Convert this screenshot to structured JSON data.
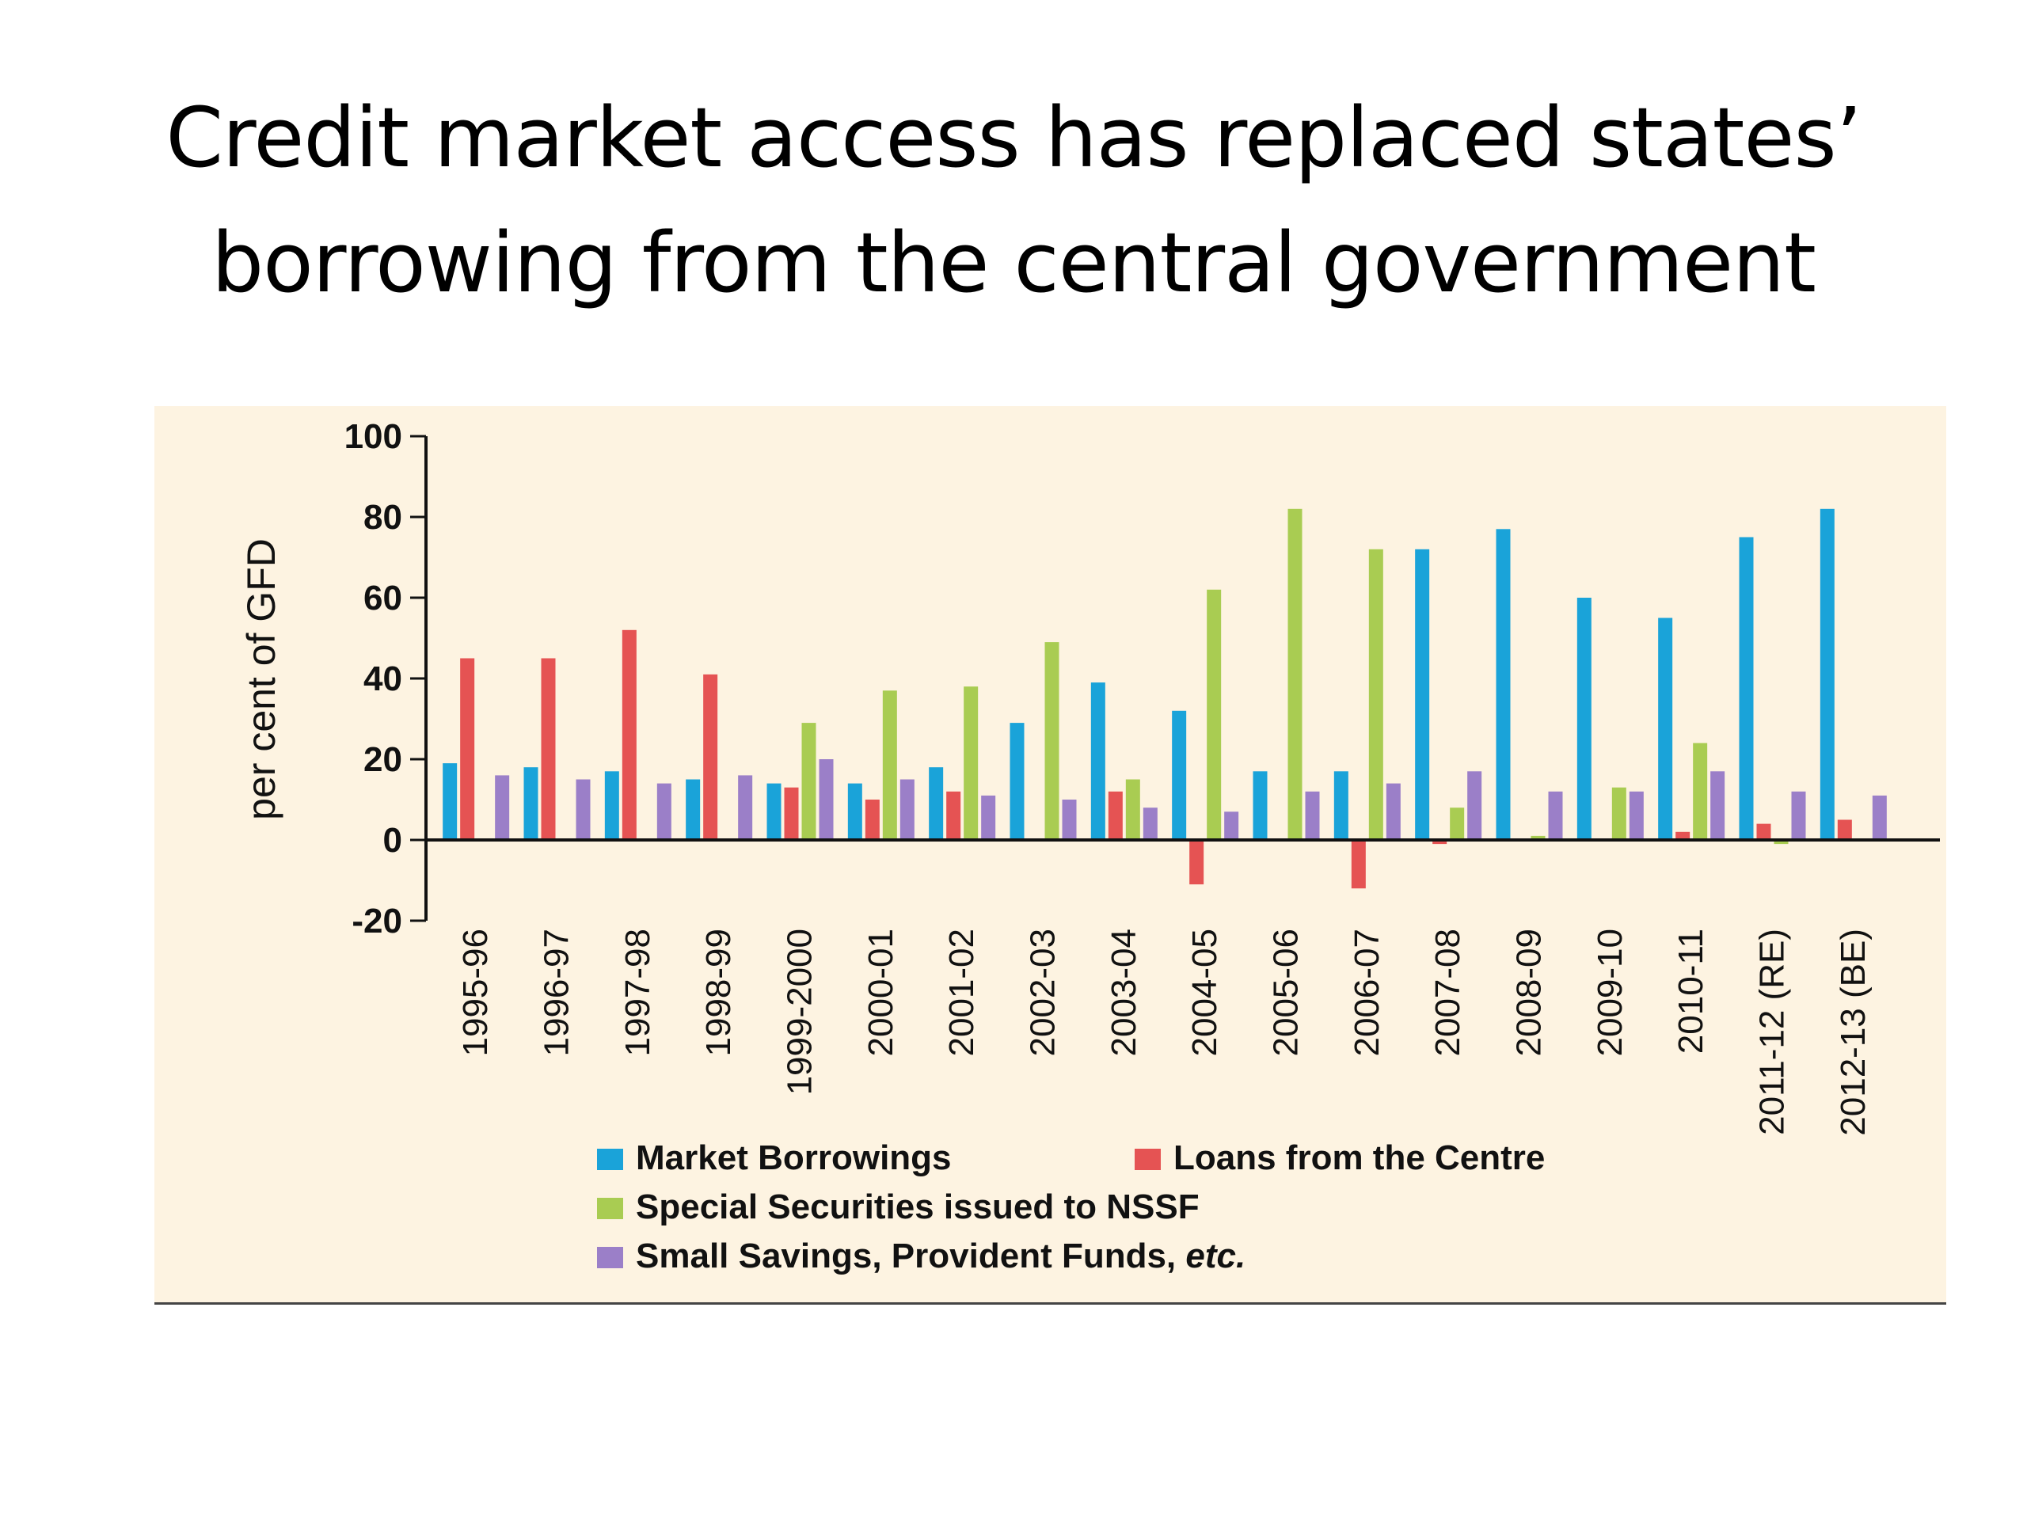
{
  "slide": {
    "title_line1": "Credit market access has replaced states’",
    "title_line2": "borrowing from the central government"
  },
  "chart_data": {
    "type": "bar",
    "title": "",
    "xlabel": "",
    "ylabel": "per cent of GFD",
    "ylim": [
      -20,
      100
    ],
    "yticks": [
      100,
      80,
      60,
      40,
      20,
      0,
      -20
    ],
    "grid": false,
    "legend_position": "bottom",
    "categories": [
      "1995-96",
      "1996-97",
      "1997-98",
      "1998-99",
      "1999-2000",
      "2000-01",
      "2001-02",
      "2002-03",
      "2003-04",
      "2004-05",
      "2005-06",
      "2006-07",
      "2007-08",
      "2008-09",
      "2009-10",
      "2010-11",
      "2011-12 (RE)",
      "2012-13 (BE)"
    ],
    "series": [
      {
        "name": "Market Borrowings",
        "color": "#1aa3d9",
        "values": [
          19,
          18,
          17,
          15,
          14,
          14,
          18,
          29,
          39,
          32,
          17,
          17,
          72,
          77,
          60,
          55,
          75,
          82
        ]
      },
      {
        "name": "Loans from the Centre",
        "color": "#e55353",
        "values": [
          45,
          45,
          52,
          41,
          13,
          10,
          12,
          0,
          12,
          -11,
          0,
          -12,
          -1,
          0,
          0,
          2,
          4,
          5
        ]
      },
      {
        "name": "Special Securities issued to NSSF",
        "color": "#a9cc52",
        "values": [
          0,
          0,
          0,
          0,
          29,
          37,
          38,
          49,
          15,
          62,
          82,
          72,
          8,
          1,
          13,
          24,
          -1,
          0
        ]
      },
      {
        "name": "Small Savings, Provident Funds, etc.",
        "color": "#9b7fc8",
        "values": [
          16,
          15,
          14,
          16,
          20,
          15,
          11,
          10,
          8,
          7,
          12,
          14,
          17,
          12,
          12,
          17,
          12,
          11
        ]
      }
    ],
    "legend": {
      "items": [
        {
          "label": "Market Borrowings",
          "color": "#1aa3d9"
        },
        {
          "label": "Loans from the Centre",
          "color": "#e55353"
        },
        {
          "label": "Special Securities issued to NSSF",
          "color": "#a9cc52"
        },
        {
          "label_main": "Small Savings, Provident Funds, ",
          "label_italic": "etc.",
          "color": "#9b7fc8"
        }
      ]
    }
  }
}
